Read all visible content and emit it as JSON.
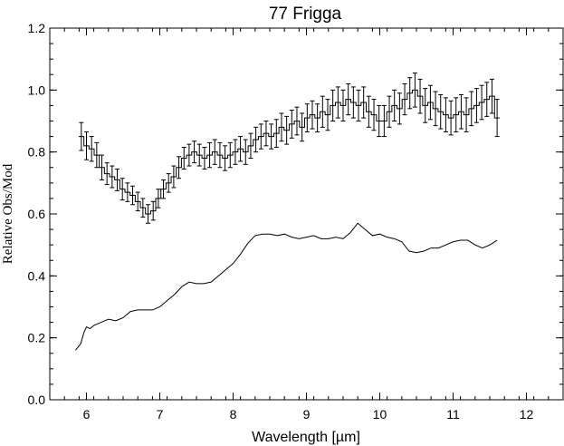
{
  "chart_data": {
    "type": "line",
    "title": "77 Frigga",
    "xlabel": "Wavelength [µm]",
    "ylabel": "Relative Obs/Mod",
    "xlim": [
      5.5,
      12.5
    ],
    "ylim": [
      0.0,
      1.2
    ],
    "xticks": [
      6,
      7,
      8,
      9,
      10,
      11,
      12
    ],
    "yticks": [
      0.0,
      0.2,
      0.4,
      0.6,
      0.8,
      1.0,
      1.2
    ],
    "ytick_labels": [
      "0.0",
      "0.2",
      "0.4",
      "0.6",
      "0.8",
      "1.0",
      "1.2"
    ],
    "grid": false,
    "series": [
      {
        "style": "step-with-errorbars",
        "x": [
          5.93,
          6.0,
          6.07,
          6.14,
          6.21,
          6.28,
          6.35,
          6.42,
          6.49,
          6.56,
          6.63,
          6.7,
          6.77,
          6.84,
          6.91,
          6.98,
          7.05,
          7.12,
          7.19,
          7.26,
          7.33,
          7.4,
          7.47,
          7.54,
          7.61,
          7.68,
          7.75,
          7.82,
          7.89,
          7.96,
          8.03,
          8.1,
          8.17,
          8.24,
          8.31,
          8.38,
          8.45,
          8.52,
          8.59,
          8.66,
          8.73,
          8.8,
          8.87,
          8.94,
          9.01,
          9.08,
          9.15,
          9.22,
          9.29,
          9.36,
          9.43,
          9.5,
          9.57,
          9.64,
          9.71,
          9.78,
          9.85,
          9.92,
          9.99,
          10.06,
          10.13,
          10.2,
          10.27,
          10.34,
          10.41,
          10.48,
          10.55,
          10.62,
          10.69,
          10.76,
          10.83,
          10.9,
          10.97,
          11.04,
          11.11,
          11.18,
          11.25,
          11.32,
          11.39,
          11.46,
          11.53,
          11.6
        ],
        "y": [
          0.85,
          0.82,
          0.81,
          0.79,
          0.75,
          0.73,
          0.72,
          0.71,
          0.68,
          0.67,
          0.66,
          0.64,
          0.62,
          0.6,
          0.61,
          0.65,
          0.68,
          0.7,
          0.72,
          0.75,
          0.78,
          0.79,
          0.8,
          0.79,
          0.78,
          0.79,
          0.8,
          0.79,
          0.78,
          0.79,
          0.8,
          0.81,
          0.8,
          0.82,
          0.84,
          0.85,
          0.86,
          0.85,
          0.86,
          0.88,
          0.87,
          0.89,
          0.9,
          0.88,
          0.91,
          0.92,
          0.91,
          0.93,
          0.92,
          0.95,
          0.96,
          0.95,
          0.97,
          0.96,
          0.95,
          0.96,
          0.93,
          0.92,
          0.9,
          0.9,
          0.93,
          0.95,
          0.94,
          0.97,
          0.99,
          1.0,
          0.98,
          0.95,
          0.96,
          0.94,
          0.93,
          0.92,
          0.91,
          0.92,
          0.93,
          0.92,
          0.94,
          0.95,
          0.96,
          0.97,
          0.98,
          0.91
        ],
        "yerr": [
          0.045,
          0.045,
          0.04,
          0.04,
          0.04,
          0.035,
          0.035,
          0.035,
          0.035,
          0.03,
          0.03,
          0.03,
          0.03,
          0.03,
          0.03,
          0.03,
          0.03,
          0.03,
          0.035,
          0.035,
          0.035,
          0.035,
          0.035,
          0.035,
          0.035,
          0.04,
          0.04,
          0.04,
          0.04,
          0.04,
          0.04,
          0.04,
          0.04,
          0.04,
          0.04,
          0.04,
          0.04,
          0.04,
          0.045,
          0.045,
          0.045,
          0.045,
          0.045,
          0.045,
          0.045,
          0.045,
          0.045,
          0.05,
          0.05,
          0.05,
          0.05,
          0.05,
          0.05,
          0.05,
          0.05,
          0.05,
          0.05,
          0.05,
          0.05,
          0.05,
          0.05,
          0.05,
          0.05,
          0.05,
          0.05,
          0.055,
          0.055,
          0.055,
          0.055,
          0.055,
          0.055,
          0.055,
          0.055,
          0.055,
          0.055,
          0.055,
          0.055,
          0.055,
          0.055,
          0.055,
          0.055,
          0.06
        ]
      },
      {
        "style": "line",
        "x": [
          5.85,
          5.92,
          5.97,
          6.0,
          6.05,
          6.1,
          6.2,
          6.3,
          6.4,
          6.5,
          6.6,
          6.7,
          6.8,
          6.9,
          7.0,
          7.1,
          7.2,
          7.3,
          7.4,
          7.5,
          7.6,
          7.7,
          7.8,
          7.9,
          8.0,
          8.1,
          8.2,
          8.3,
          8.4,
          8.5,
          8.6,
          8.7,
          8.8,
          8.9,
          9.0,
          9.1,
          9.2,
          9.3,
          9.4,
          9.5,
          9.6,
          9.7,
          9.8,
          9.9,
          10.0,
          10.1,
          10.2,
          10.3,
          10.4,
          10.5,
          10.6,
          10.7,
          10.8,
          10.9,
          11.0,
          11.1,
          11.2,
          11.3,
          11.4,
          11.5,
          11.6
        ],
        "y": [
          0.16,
          0.18,
          0.22,
          0.235,
          0.23,
          0.24,
          0.25,
          0.26,
          0.255,
          0.265,
          0.285,
          0.29,
          0.29,
          0.29,
          0.3,
          0.32,
          0.34,
          0.365,
          0.38,
          0.375,
          0.375,
          0.38,
          0.4,
          0.42,
          0.44,
          0.47,
          0.505,
          0.53,
          0.535,
          0.535,
          0.53,
          0.535,
          0.525,
          0.52,
          0.525,
          0.53,
          0.52,
          0.52,
          0.525,
          0.52,
          0.54,
          0.57,
          0.55,
          0.53,
          0.535,
          0.525,
          0.52,
          0.51,
          0.48,
          0.475,
          0.48,
          0.49,
          0.49,
          0.5,
          0.51,
          0.515,
          0.515,
          0.5,
          0.49,
          0.5,
          0.515
        ]
      }
    ]
  }
}
